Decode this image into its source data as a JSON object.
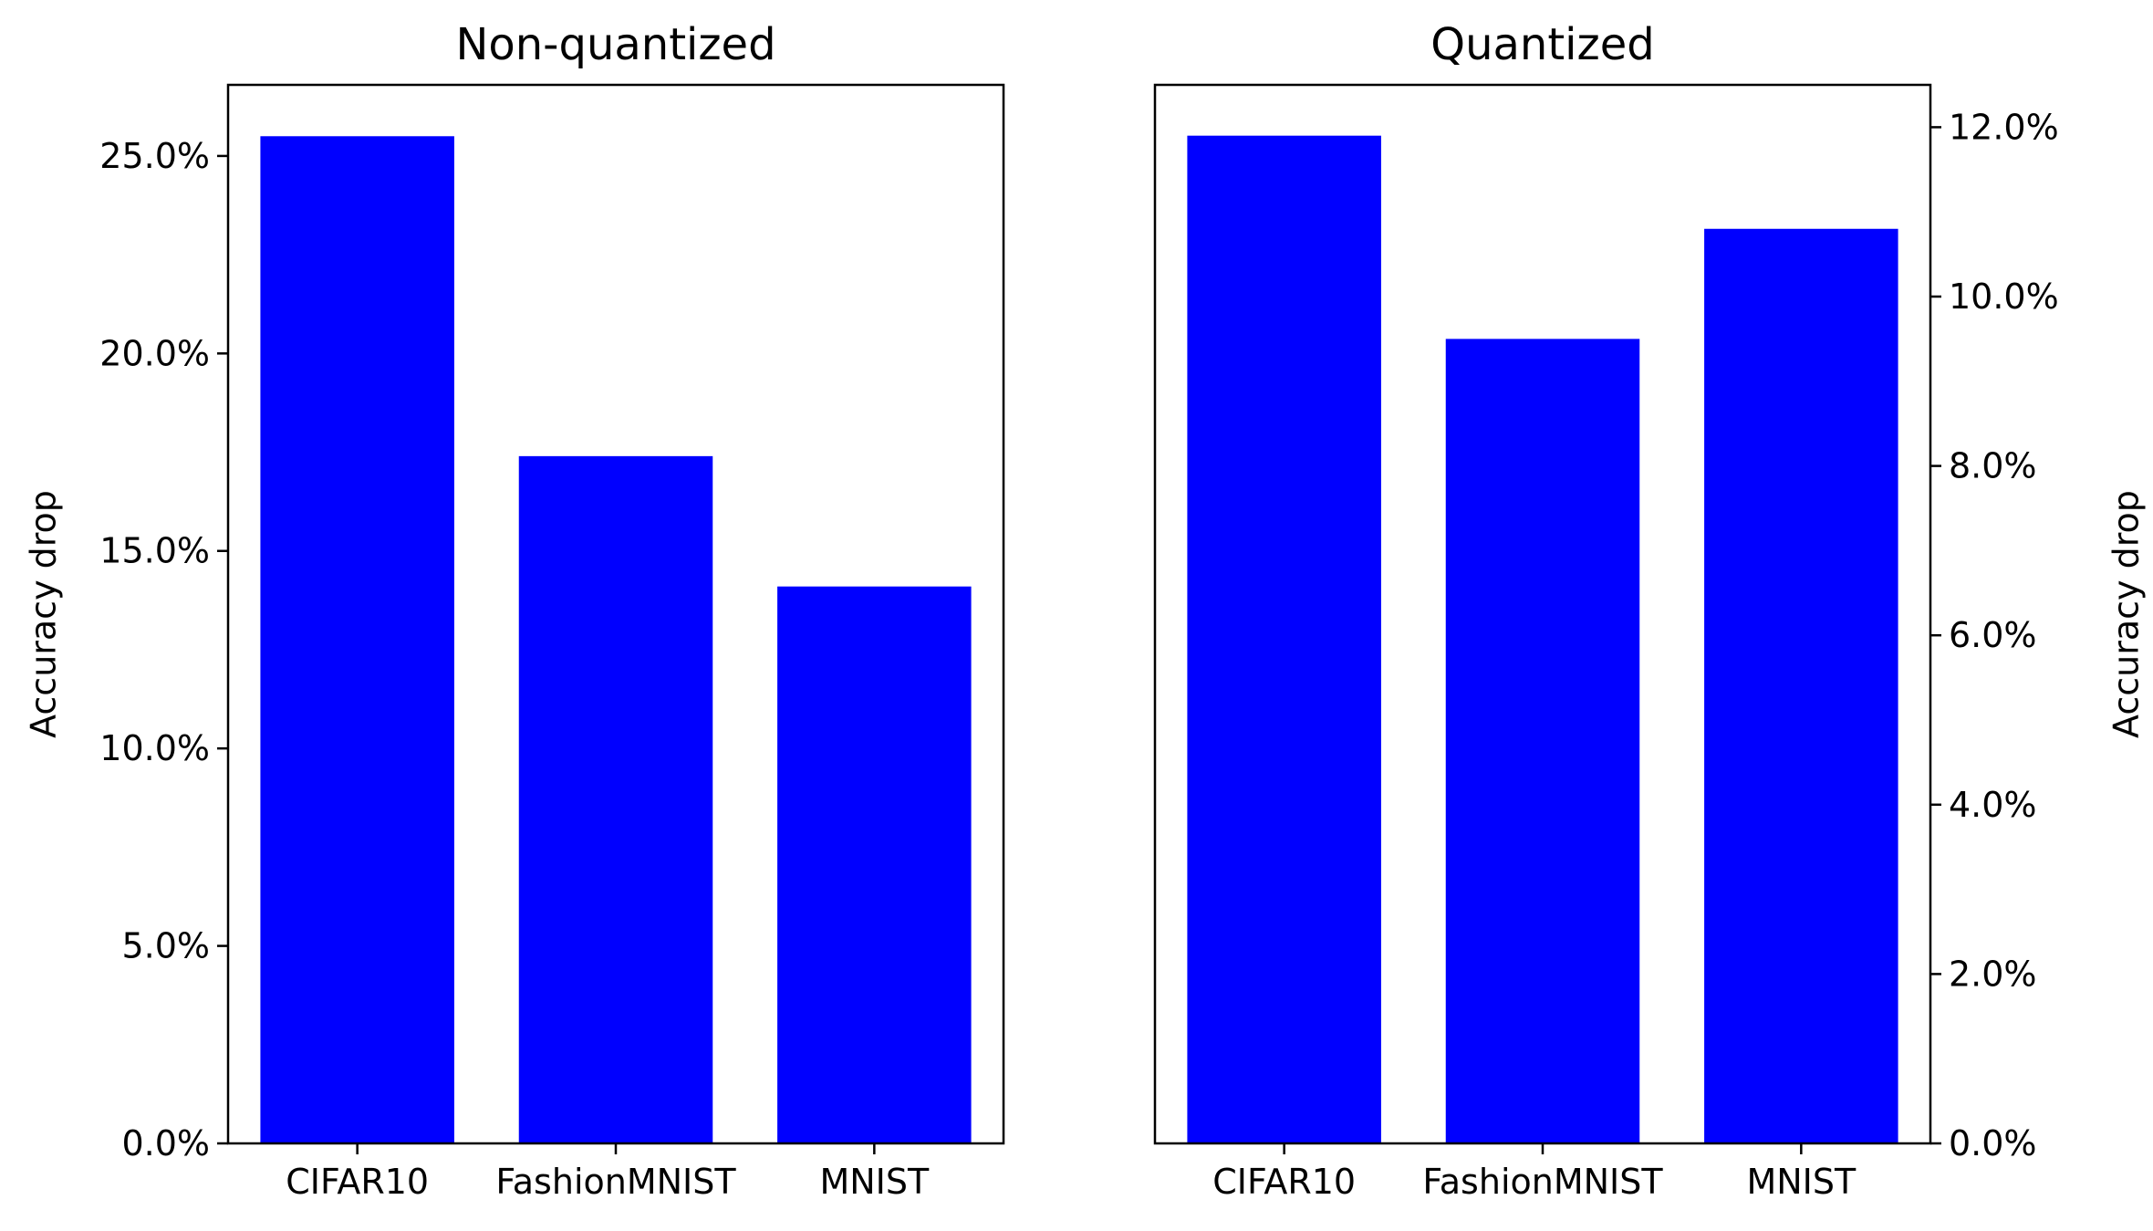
{
  "chart_data": [
    {
      "type": "bar",
      "title": "Non-quantized",
      "categories": [
        "CIFAR10",
        "FashionMNIST",
        "MNIST"
      ],
      "values": [
        25.5,
        17.4,
        14.1
      ],
      "unit": "%",
      "xlabel": "",
      "ylabel": "Accuracy drop",
      "ylim": [
        0,
        26.8
      ],
      "yticks": [
        0,
        5,
        10,
        15,
        20,
        25
      ],
      "ytick_labels": [
        "0.0%",
        "5.0%",
        "10.0%",
        "15.0%",
        "20.0%",
        "25.0%"
      ],
      "yaxis_side": "left",
      "bar_color": "#0000ff",
      "grid": false,
      "legend": null
    },
    {
      "type": "bar",
      "title": "Quantized",
      "categories": [
        "CIFAR10",
        "FashionMNIST",
        "MNIST"
      ],
      "values": [
        11.9,
        9.5,
        10.8
      ],
      "unit": "%",
      "xlabel": "",
      "ylabel": "Accuracy drop",
      "ylim": [
        0,
        12.5
      ],
      "yticks": [
        0,
        2,
        4,
        6,
        8,
        10,
        12
      ],
      "ytick_labels": [
        "0.0%",
        "2.0%",
        "4.0%",
        "6.0%",
        "8.0%",
        "10.0%",
        "12.0%"
      ],
      "yaxis_side": "right",
      "bar_color": "#0000ff",
      "grid": false,
      "legend": null
    }
  ]
}
